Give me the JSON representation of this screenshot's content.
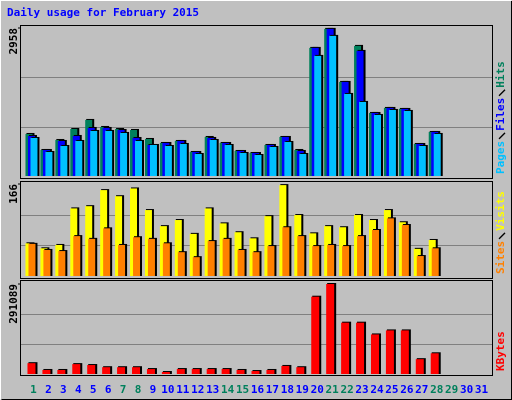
{
  "chart_data": [
    {
      "type": "bar",
      "title": "Daily usage for February 2015",
      "ylim": [
        0,
        2958
      ],
      "yticks": [
        2958
      ],
      "series": [
        {
          "name": "Hits",
          "color": "#00805c",
          "values": [
            840,
            520,
            720,
            940,
            1120,
            980,
            940,
            920,
            740,
            660,
            700,
            480,
            780,
            660,
            500,
            460,
            620,
            780,
            520,
            2560,
            2940,
            1880,
            2600,
            1260,
            1360,
            1340,
            640,
            880,
            null,
            null,
            null
          ]
        },
        {
          "name": "Files",
          "color": "#0000ff",
          "values": [
            800,
            520,
            700,
            800,
            960,
            960,
            920,
            760,
            620,
            660,
            700,
            480,
            760,
            660,
            500,
            460,
            620,
            780,
            500,
            2560,
            2940,
            1880,
            2500,
            1260,
            1360,
            1340,
            640,
            880,
            null,
            null,
            null
          ]
        },
        {
          "name": "Pages",
          "color": "#00c0ff",
          "values": [
            760,
            480,
            600,
            700,
            900,
            900,
            860,
            700,
            620,
            600,
            640,
            440,
            720,
            620,
            460,
            420,
            580,
            680,
            440,
            2400,
            2800,
            1640,
            1480,
            1220,
            1320,
            1300,
            600,
            840,
            null,
            null,
            null
          ]
        }
      ]
    },
    {
      "type": "bar",
      "ylim": [
        0,
        166
      ],
      "yticks": [
        166
      ],
      "series": [
        {
          "name": "Visits",
          "color": "#ffff00",
          "values": [
            59,
            50,
            56,
            122,
            126,
            155,
            144,
            158,
            119,
            90,
            101,
            76,
            122,
            95,
            79,
            68,
            108,
            164,
            110,
            77,
            90,
            88,
            110,
            101,
            119,
            97,
            49,
            65,
            null,
            null,
            null
          ]
        },
        {
          "name": "Sites",
          "color": "#ff8000",
          "values": [
            58,
            47,
            45,
            72,
            67,
            86,
            56,
            70,
            67,
            59,
            43,
            34,
            63,
            67,
            47,
            43,
            54,
            88,
            72,
            54,
            56,
            54,
            72,
            83,
            104,
            92,
            36,
            50,
            null,
            null,
            null
          ]
        }
      ]
    },
    {
      "type": "bar",
      "ylim": [
        0,
        291089
      ],
      "yticks": [
        291089
      ],
      "categories": [
        "1",
        "2",
        "3",
        "4",
        "5",
        "6",
        "7",
        "8",
        "9",
        "10",
        "11",
        "12",
        "13",
        "14",
        "15",
        "16",
        "17",
        "18",
        "19",
        "20",
        "21",
        "22",
        "23",
        "24",
        "25",
        "26",
        "27",
        "28",
        "29",
        "30",
        "31"
      ],
      "category_colors": [
        "#00805c",
        "#0000ff",
        "#0000ff",
        "#0000ff",
        "#0000ff",
        "#0000ff",
        "#00805c",
        "#00805c",
        "#0000ff",
        "#0000ff",
        "#0000ff",
        "#0000ff",
        "#0000ff",
        "#00805c",
        "#00805c",
        "#0000ff",
        "#0000ff",
        "#0000ff",
        "#0000ff",
        "#0000ff",
        "#00805c",
        "#00805c",
        "#0000ff",
        "#0000ff",
        "#0000ff",
        "#0000ff",
        "#0000ff",
        "#00805c",
        "#00805c",
        "#0000ff",
        "#0000ff"
      ],
      "series": [
        {
          "name": "KBytes",
          "color": "#ff0000",
          "values": [
            35000,
            13000,
            13000,
            32000,
            29000,
            22000,
            22000,
            22000,
            16000,
            6400,
            16000,
            16000,
            16000,
            16000,
            13000,
            9600,
            13000,
            26000,
            22000,
            250000,
            291089,
            166000,
            166000,
            128000,
            141000,
            141000,
            48000,
            67000,
            null,
            null,
            null
          ]
        }
      ]
    }
  ]
}
